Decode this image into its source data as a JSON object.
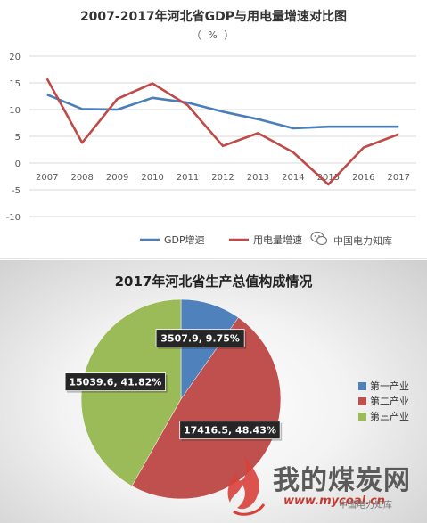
{
  "line_panel": {
    "title": "2007-2017年河北省GDP与用电量增速对比图",
    "unit": "（ % ）",
    "watermark": "中国电力知库"
  },
  "pie_panel": {
    "title": "2017年河北省生产总值构成情况",
    "site_name": "我的煤炭网",
    "site_url": "www.mycoal.cn",
    "watermark": "中国电力知库"
  },
  "chart_data": [
    {
      "type": "line",
      "title": "2007-2017年河北省GDP与用电量增速对比图",
      "unit": "（ % ）",
      "x": [
        "2007",
        "2008",
        "2009",
        "2010",
        "2011",
        "2012",
        "2013",
        "2014",
        "2015",
        "2016",
        "2017"
      ],
      "ylim": [
        -10,
        20
      ],
      "yticks": [
        -10,
        -5,
        0,
        5,
        10,
        15,
        20
      ],
      "grid": true,
      "legend_position": "bottom",
      "series": [
        {
          "name": "GDP增速",
          "color": "#4a7ebb",
          "values": [
            12.8,
            10.1,
            10.0,
            12.2,
            11.3,
            9.6,
            8.2,
            6.5,
            6.8,
            6.8,
            6.8
          ]
        },
        {
          "name": "用电量增速",
          "color": "#be4b48",
          "values": [
            15.8,
            3.8,
            12.0,
            14.9,
            10.8,
            3.2,
            5.6,
            2.0,
            -4.0,
            2.9,
            5.4
          ]
        }
      ]
    },
    {
      "type": "pie",
      "title": "2017年河北省生产总值构成情况",
      "legend_position": "right",
      "slices": [
        {
          "name": "第一产业",
          "value": 3507.9,
          "percent": "9.75%",
          "label": "3507.9, 9.75%",
          "color": "#4f81bd"
        },
        {
          "name": "第二产业",
          "value": 17416.5,
          "percent": "48.43%",
          "label": "17416.5, 48.43%",
          "color": "#c0504d"
        },
        {
          "name": "第三产业",
          "value": 15039.6,
          "percent": "41.82%",
          "label": "15039.6, 41.82%",
          "color": "#9bbb59"
        }
      ]
    }
  ]
}
